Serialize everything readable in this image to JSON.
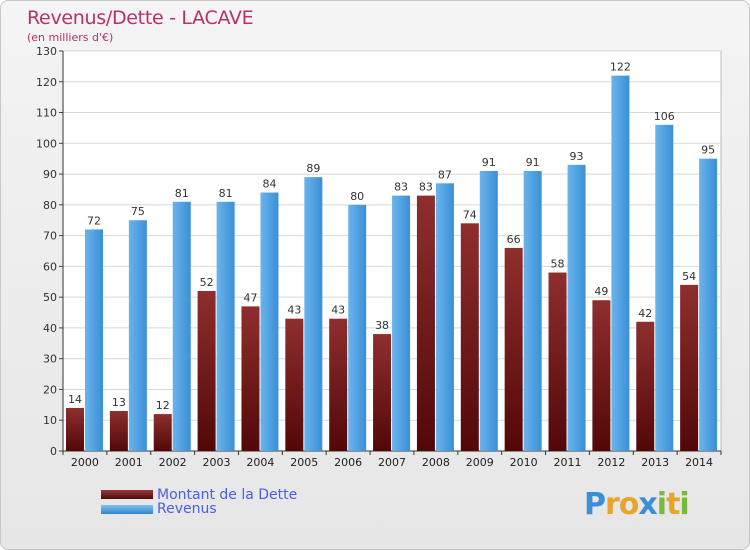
{
  "header": {
    "title": "Revenus/Dette - LACAVE",
    "subtitle": "(en milliers d'€)"
  },
  "chart_data": {
    "type": "bar",
    "title": "Revenus/Dette - LACAVE",
    "subtitle": "(en milliers d'€)",
    "categories": [
      "2000",
      "2001",
      "2002",
      "2003",
      "2004",
      "2005",
      "2006",
      "2007",
      "2008",
      "2009",
      "2010",
      "2011",
      "2012",
      "2013",
      "2014"
    ],
    "series": [
      {
        "name": "Montant de la Dette",
        "color": "#7a1f1f",
        "values": [
          14,
          13,
          12,
          52,
          47,
          43,
          43,
          38,
          83,
          74,
          66,
          58,
          49,
          42,
          54
        ]
      },
      {
        "name": "Revenus",
        "color": "#4a9fe3",
        "values": [
          72,
          75,
          81,
          81,
          84,
          89,
          80,
          83,
          87,
          91,
          91,
          93,
          122,
          106,
          95
        ]
      }
    ],
    "ylim": [
      0,
      130
    ],
    "yticks": [
      0,
      10,
      20,
      30,
      40,
      50,
      60,
      70,
      80,
      90,
      100,
      110,
      120,
      130
    ],
    "grid": true,
    "legend": "bottom-left"
  },
  "legend": {
    "items": [
      {
        "label": "Montant de la Dette",
        "color": "#6b1212"
      },
      {
        "label": "Revenus",
        "color": "#4a9fe3"
      }
    ]
  },
  "logo": {
    "letters": [
      "P",
      "r",
      "o",
      "x",
      "i",
      "t",
      "i"
    ],
    "colors": [
      "#3b8fd8",
      "#e8a52a",
      "#e8a52a",
      "#3b8fd8",
      "#7ab83a",
      "#e8a52a",
      "#7ab83a"
    ]
  }
}
